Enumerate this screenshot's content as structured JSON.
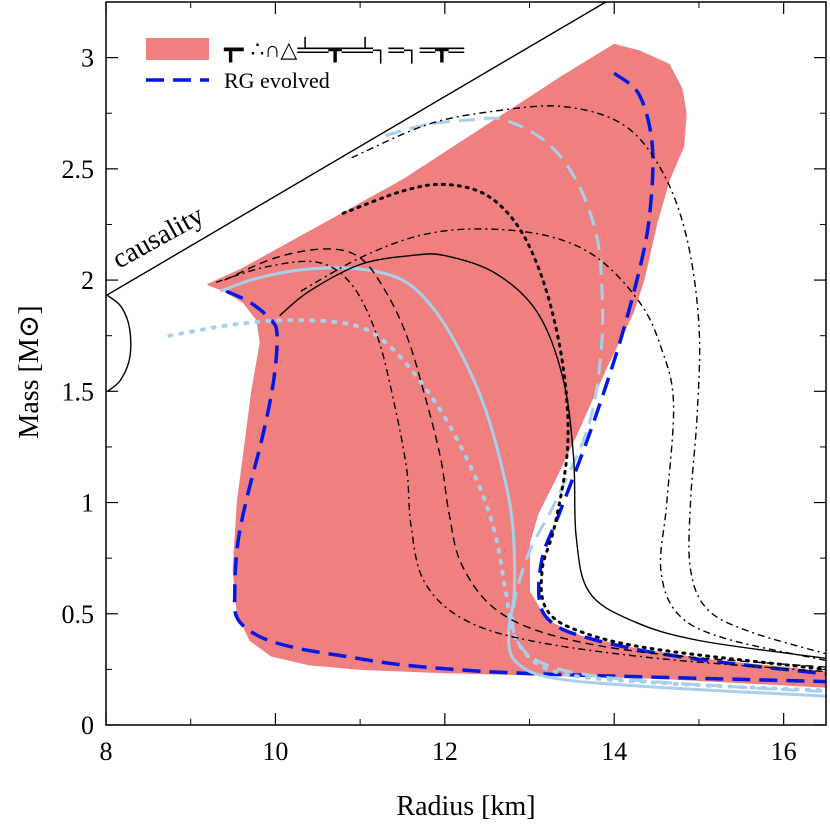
{
  "chart_data": {
    "type": "line",
    "xlabel": "Radius [km]",
    "ylabel": "Mass [M⊙]",
    "xlim": [
      8,
      16.5
    ],
    "ylim": [
      0,
      3.25
    ],
    "x_ticks": [
      8,
      10,
      12,
      14,
      16
    ],
    "y_ticks": [
      0,
      0.5,
      1,
      1.5,
      2,
      2.5,
      3
    ],
    "x_tick_labels": [
      "8",
      "10",
      "12",
      "14",
      "16"
    ],
    "y_tick_labels": [
      "0",
      "0.5",
      "1",
      "1.5",
      "2",
      "2.5",
      "3"
    ],
    "colors": {
      "band": "#f08080",
      "rg_evolved": "#0018e6",
      "light_blue": "#a8d0ea",
      "black": "#000000"
    },
    "legend": {
      "position": "top-left",
      "entries": [
        {
          "label": "┳╸∴∩△╧═┳═╧┐═┐═┳═",
          "style": "band"
        },
        {
          "label": "RG evolved",
          "style": "dashed-blue"
        }
      ]
    },
    "annotations": [
      {
        "text": "causality",
        "anchor": [
          8.15,
          2.05
        ],
        "rotation_deg": -29
      }
    ],
    "causality_line": {
      "x": [
        8.0,
        13.9
      ],
      "y": [
        1.93,
        3.25
      ]
    },
    "band": {
      "name": "allowed region",
      "points": [
        [
          9.2,
          1.98
        ],
        [
          9.6,
          2.05
        ],
        [
          11.5,
          2.45
        ],
        [
          13.4,
          2.92
        ],
        [
          14.0,
          3.06
        ],
        [
          14.3,
          3.03
        ],
        [
          14.65,
          2.97
        ],
        [
          14.8,
          2.86
        ],
        [
          14.85,
          2.75
        ],
        [
          14.82,
          2.6
        ],
        [
          14.65,
          2.45
        ],
        [
          14.5,
          2.25
        ],
        [
          14.35,
          2.0
        ],
        [
          14.22,
          1.85
        ],
        [
          13.9,
          1.6
        ],
        [
          13.55,
          1.3
        ],
        [
          13.3,
          1.1
        ],
        [
          13.1,
          0.95
        ],
        [
          13.0,
          0.82
        ],
        [
          13.0,
          0.6
        ],
        [
          13.2,
          0.47
        ],
        [
          13.6,
          0.4
        ],
        [
          14.3,
          0.34
        ],
        [
          15.2,
          0.29
        ],
        [
          16.5,
          0.24
        ],
        [
          16.5,
          0.17
        ],
        [
          15.5,
          0.19
        ],
        [
          14.5,
          0.21
        ],
        [
          13.0,
          0.225
        ],
        [
          12.0,
          0.235
        ],
        [
          11.0,
          0.25
        ],
        [
          10.4,
          0.27
        ],
        [
          9.95,
          0.31
        ],
        [
          9.7,
          0.38
        ],
        [
          9.55,
          0.5
        ],
        [
          9.5,
          0.7
        ],
        [
          9.55,
          1.0
        ],
        [
          9.72,
          1.5
        ],
        [
          9.82,
          1.72
        ],
        [
          9.78,
          1.82
        ],
        [
          9.62,
          1.9
        ],
        [
          9.4,
          1.95
        ]
      ]
    },
    "series": [
      {
        "name": "RG evolved (left)",
        "color": "#0018e6",
        "dash": "18,9",
        "width": 3.5,
        "points": [
          [
            9.42,
            1.95
          ],
          [
            9.7,
            1.9
          ],
          [
            9.95,
            1.82
          ],
          [
            10.02,
            1.75
          ],
          [
            9.98,
            1.55
          ],
          [
            9.85,
            1.3
          ],
          [
            9.65,
            1.0
          ],
          [
            9.55,
            0.8
          ],
          [
            9.52,
            0.6
          ],
          [
            9.55,
            0.48
          ],
          [
            9.8,
            0.4
          ],
          [
            10.2,
            0.35
          ],
          [
            10.8,
            0.31
          ],
          [
            11.5,
            0.27
          ],
          [
            12.5,
            0.24
          ],
          [
            13.5,
            0.225
          ],
          [
            14.5,
            0.215
          ],
          [
            15.5,
            0.205
          ],
          [
            16.5,
            0.195
          ]
        ]
      },
      {
        "name": "RG evolved (right)",
        "color": "#0018e6",
        "dash": "18,9",
        "width": 3.5,
        "points": [
          [
            14.0,
            2.93
          ],
          [
            14.3,
            2.83
          ],
          [
            14.45,
            2.6
          ],
          [
            14.42,
            2.3
          ],
          [
            14.3,
            2.05
          ],
          [
            14.05,
            1.7
          ],
          [
            13.7,
            1.3
          ],
          [
            13.35,
            0.95
          ],
          [
            13.15,
            0.75
          ],
          [
            13.12,
            0.55
          ],
          [
            13.3,
            0.45
          ],
          [
            13.7,
            0.39
          ],
          [
            14.4,
            0.33
          ],
          [
            15.3,
            0.28
          ],
          [
            16.5,
            0.23
          ]
        ]
      },
      {
        "name": "light blue dashed",
        "color": "#a8d0ea",
        "dash": "16,9",
        "width": 3,
        "points": [
          [
            11.3,
            2.65
          ],
          [
            11.8,
            2.7
          ],
          [
            12.3,
            2.72
          ],
          [
            12.7,
            2.72
          ],
          [
            13.2,
            2.62
          ],
          [
            13.55,
            2.45
          ],
          [
            13.78,
            2.22
          ],
          [
            13.85,
            2.0
          ],
          [
            13.85,
            1.7
          ],
          [
            13.7,
            1.35
          ],
          [
            13.3,
            1.0
          ],
          [
            13.0,
            0.78
          ],
          [
            12.82,
            0.55
          ],
          [
            12.85,
            0.38
          ],
          [
            13.2,
            0.27
          ],
          [
            14.0,
            0.21
          ],
          [
            15.5,
            0.17
          ],
          [
            16.5,
            0.15
          ]
        ]
      },
      {
        "name": "light blue solid",
        "color": "#a8d0ea",
        "dash": "",
        "width": 3,
        "points": [
          [
            9.35,
            1.95
          ],
          [
            9.8,
            2.01
          ],
          [
            10.4,
            2.05
          ],
          [
            11.0,
            2.05
          ],
          [
            11.5,
            2.0
          ],
          [
            11.85,
            1.88
          ],
          [
            12.15,
            1.7
          ],
          [
            12.45,
            1.45
          ],
          [
            12.68,
            1.15
          ],
          [
            12.8,
            0.9
          ],
          [
            12.82,
            0.6
          ],
          [
            12.75,
            0.4
          ],
          [
            12.85,
            0.28
          ],
          [
            13.3,
            0.21
          ],
          [
            14.5,
            0.17
          ],
          [
            16.5,
            0.13
          ]
        ]
      },
      {
        "name": "light blue dotted",
        "color": "#a8d0ea",
        "dash": "2,9",
        "width": 4,
        "points": [
          [
            8.75,
            1.75
          ],
          [
            9.5,
            1.8
          ],
          [
            10.2,
            1.82
          ],
          [
            10.9,
            1.8
          ],
          [
            11.3,
            1.72
          ],
          [
            11.7,
            1.55
          ],
          [
            12.05,
            1.35
          ],
          [
            12.4,
            1.08
          ],
          [
            12.6,
            0.85
          ],
          [
            12.72,
            0.6
          ],
          [
            12.85,
            0.38
          ],
          [
            13.3,
            0.24
          ],
          [
            14.5,
            0.19
          ],
          [
            16.5,
            0.155
          ]
        ]
      },
      {
        "name": "black solid",
        "color": "#000000",
        "dash": "",
        "width": 1.4,
        "points": [
          [
            10.05,
            1.84
          ],
          [
            10.4,
            1.95
          ],
          [
            11.0,
            2.07
          ],
          [
            11.6,
            2.11
          ],
          [
            12.0,
            2.11
          ],
          [
            12.6,
            2.03
          ],
          [
            13.1,
            1.85
          ],
          [
            13.4,
            1.55
          ],
          [
            13.52,
            1.2
          ],
          [
            13.55,
            0.85
          ],
          [
            13.7,
            0.6
          ],
          [
            14.2,
            0.47
          ],
          [
            15.0,
            0.38
          ],
          [
            16.5,
            0.3
          ]
        ]
      },
      {
        "name": "black dotted",
        "color": "#000000",
        "dash": "2,6",
        "width": 3,
        "points": [
          [
            10.8,
            2.3
          ],
          [
            11.5,
            2.4
          ],
          [
            12.0,
            2.43
          ],
          [
            12.5,
            2.38
          ],
          [
            12.9,
            2.22
          ],
          [
            13.2,
            1.95
          ],
          [
            13.4,
            1.6
          ],
          [
            13.45,
            1.25
          ],
          [
            13.3,
            0.9
          ],
          [
            13.15,
            0.7
          ],
          [
            13.2,
            0.52
          ],
          [
            13.6,
            0.42
          ],
          [
            14.5,
            0.34
          ],
          [
            16.5,
            0.25
          ]
        ]
      },
      {
        "name": "black dash-dot (large)",
        "color": "#000000",
        "dash": "7,4,2,4",
        "width": 1.4,
        "points": [
          [
            10.9,
            2.55
          ],
          [
            11.8,
            2.7
          ],
          [
            12.6,
            2.76
          ],
          [
            13.4,
            2.78
          ],
          [
            14.1,
            2.7
          ],
          [
            14.55,
            2.5
          ],
          [
            14.85,
            2.2
          ],
          [
            15.0,
            1.8
          ],
          [
            14.98,
            1.4
          ],
          [
            14.9,
            1.0
          ],
          [
            14.9,
            0.7
          ],
          [
            15.1,
            0.52
          ],
          [
            15.6,
            0.42
          ],
          [
            16.5,
            0.32
          ]
        ]
      },
      {
        "name": "black dash-dot (mid)",
        "color": "#000000",
        "dash": "7,4,2,4",
        "width": 1.4,
        "points": [
          [
            10.3,
            1.95
          ],
          [
            11.0,
            2.1
          ],
          [
            11.7,
            2.2
          ],
          [
            12.4,
            2.23
          ],
          [
            13.2,
            2.2
          ],
          [
            13.8,
            2.1
          ],
          [
            14.3,
            1.9
          ],
          [
            14.55,
            1.7
          ],
          [
            14.7,
            1.45
          ],
          [
            14.62,
            1.0
          ],
          [
            14.55,
            0.7
          ],
          [
            14.75,
            0.5
          ],
          [
            15.3,
            0.39
          ],
          [
            16.5,
            0.29
          ]
        ]
      },
      {
        "name": "black dashed",
        "color": "#000000",
        "dash": "8,5",
        "width": 1.4,
        "points": [
          [
            9.4,
            2.0
          ],
          [
            10.0,
            2.1
          ],
          [
            10.6,
            2.14
          ],
          [
            11.0,
            2.1
          ],
          [
            11.3,
            1.95
          ],
          [
            11.55,
            1.75
          ],
          [
            11.75,
            1.5
          ],
          [
            11.95,
            1.2
          ],
          [
            12.05,
            0.95
          ],
          [
            12.2,
            0.72
          ],
          [
            12.6,
            0.52
          ],
          [
            13.3,
            0.4
          ],
          [
            14.5,
            0.32
          ],
          [
            16.5,
            0.26
          ]
        ]
      },
      {
        "name": "black dash-dot (small)",
        "color": "#000000",
        "dash": "7,4,2,4",
        "width": 1.4,
        "points": [
          [
            9.3,
            1.99
          ],
          [
            9.9,
            2.06
          ],
          [
            10.5,
            2.08
          ],
          [
            10.9,
            1.98
          ],
          [
            11.2,
            1.75
          ],
          [
            11.4,
            1.45
          ],
          [
            11.55,
            1.15
          ],
          [
            11.6,
            0.9
          ],
          [
            11.75,
            0.65
          ],
          [
            12.2,
            0.48
          ],
          [
            13.0,
            0.38
          ],
          [
            14.5,
            0.3
          ],
          [
            16.5,
            0.24
          ]
        ]
      },
      {
        "name": "black solid (causality loop)",
        "color": "#000000",
        "dash": "",
        "width": 1.4,
        "points": [
          [
            8.02,
            1.93
          ],
          [
            8.18,
            1.88
          ],
          [
            8.28,
            1.78
          ],
          [
            8.28,
            1.65
          ],
          [
            8.17,
            1.55
          ],
          [
            8.02,
            1.5
          ]
        ]
      }
    ]
  }
}
